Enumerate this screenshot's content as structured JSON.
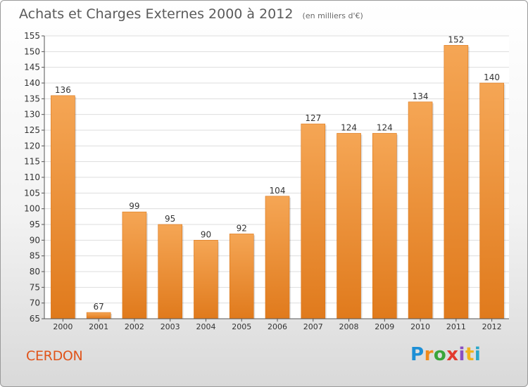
{
  "header": {
    "title": "Achats et Charges Externes 2000 à 2012",
    "unit": "(en milliers d'€)"
  },
  "footer": {
    "commune": "CERDON",
    "logo_text": "Proxiti"
  },
  "colors": {
    "bar_top": "#f5a655",
    "bar_bottom": "#e07a1c",
    "commune": "#e0541a",
    "grid": "#dddddd"
  },
  "chart_data": {
    "type": "bar",
    "title": "Achats et Charges Externes 2000 à 2012",
    "subtitle": "(en milliers d'€)",
    "xlabel": "",
    "ylabel": "",
    "categories": [
      "2000",
      "2001",
      "2002",
      "2003",
      "2004",
      "2005",
      "2006",
      "2007",
      "2008",
      "2009",
      "2010",
      "2011",
      "2012"
    ],
    "values": [
      136,
      67,
      99,
      95,
      90,
      92,
      104,
      127,
      124,
      124,
      134,
      152,
      140
    ],
    "ylim": [
      65,
      155
    ],
    "yticks": [
      65,
      70,
      75,
      80,
      85,
      90,
      95,
      100,
      105,
      110,
      115,
      120,
      125,
      130,
      135,
      140,
      145,
      150,
      155
    ],
    "grid": true,
    "legend": "none"
  }
}
